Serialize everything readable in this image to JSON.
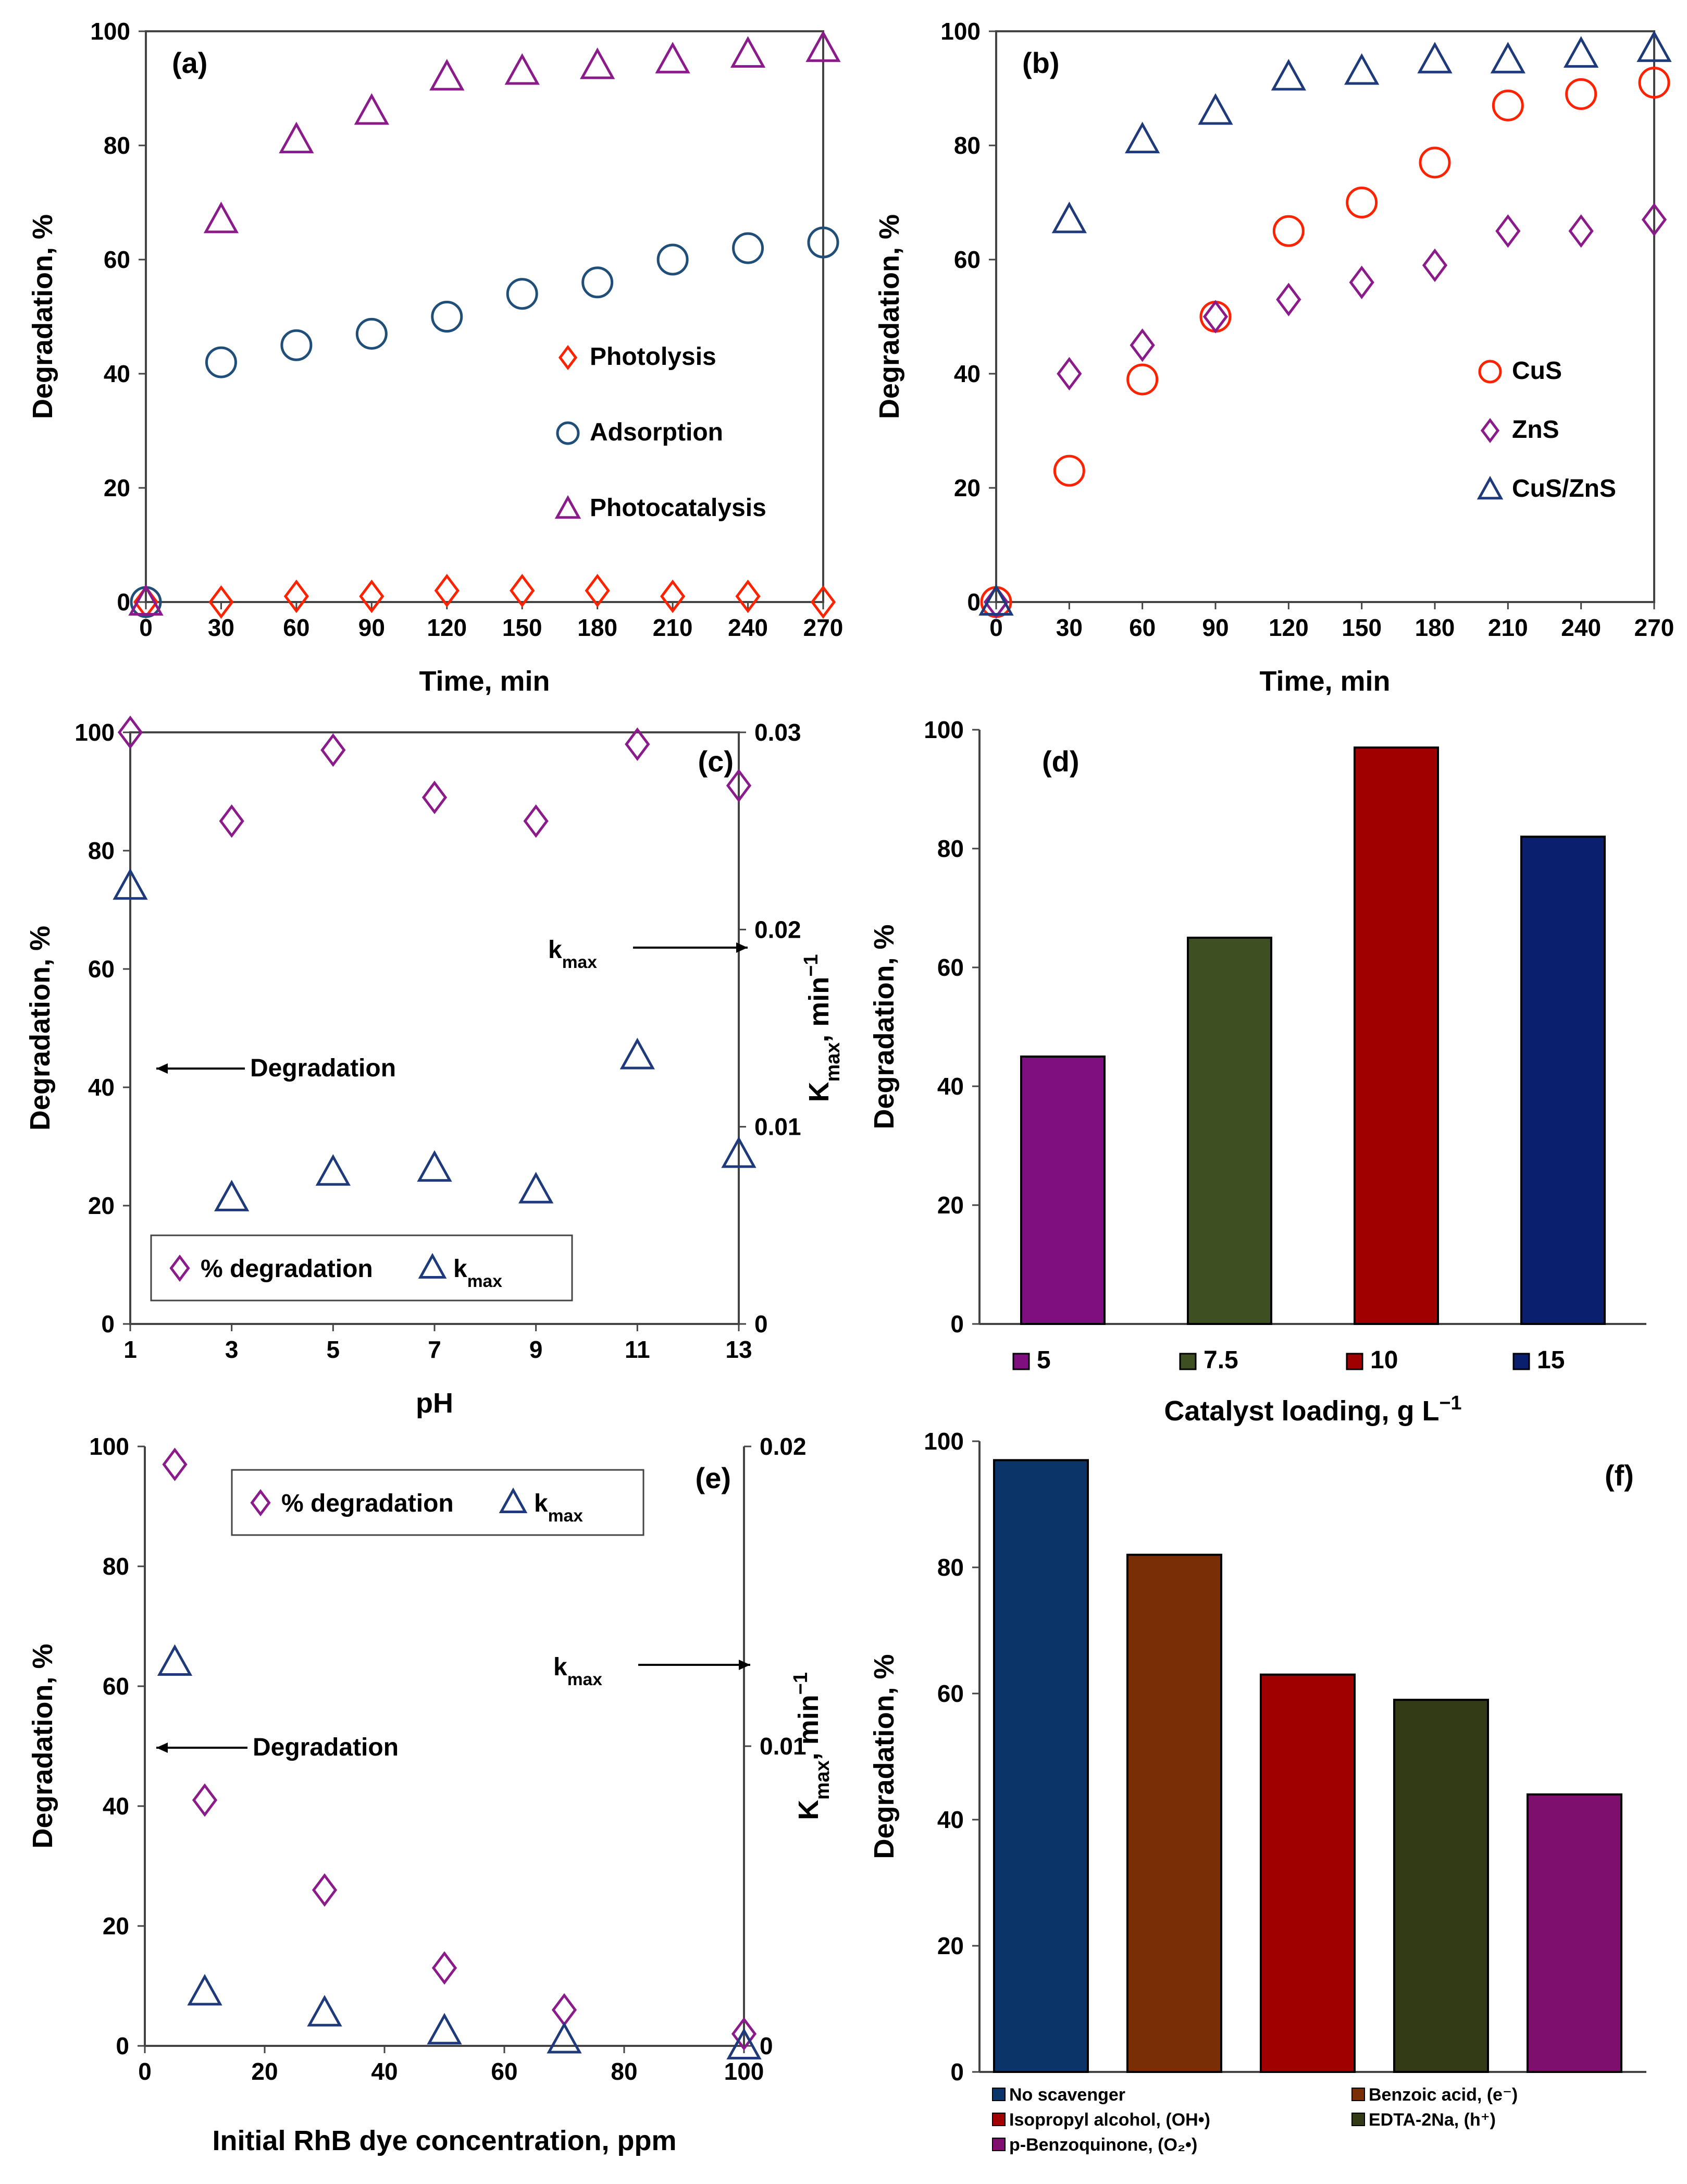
{
  "chart_data": [
    {
      "id": "a",
      "type": "scatter",
      "panel_label": "(a)",
      "xlabel": "Time, min",
      "ylabel": "Degradation, %",
      "xlim": [
        0,
        270
      ],
      "ylim": [
        0,
        100
      ],
      "xticks": [
        0,
        30,
        60,
        90,
        120,
        150,
        180,
        210,
        240,
        270
      ],
      "yticks": [
        0,
        20,
        40,
        60,
        80,
        100
      ],
      "legend_position": "right-middle",
      "series": [
        {
          "name": "Photolysis",
          "marker": "diamond",
          "color": "#ff2200",
          "x": [
            0,
            30,
            60,
            90,
            120,
            150,
            180,
            210,
            240,
            270
          ],
          "y": [
            0,
            0,
            1,
            1,
            2,
            2,
            2,
            1,
            1,
            0
          ]
        },
        {
          "name": "Adsorption",
          "marker": "circle",
          "color": "#1f4e79",
          "x": [
            0,
            30,
            60,
            90,
            120,
            150,
            180,
            210,
            240,
            270
          ],
          "y": [
            0,
            42,
            45,
            47,
            50,
            54,
            56,
            60,
            62,
            63
          ]
        },
        {
          "name": "Photocatalysis",
          "marker": "triangle",
          "color": "#8b1a8b",
          "x": [
            0,
            30,
            60,
            90,
            120,
            150,
            180,
            210,
            240,
            270
          ],
          "y": [
            0,
            67,
            81,
            86,
            92,
            93,
            94,
            95,
            96,
            97
          ]
        }
      ]
    },
    {
      "id": "b",
      "type": "scatter",
      "panel_label": "(b)",
      "xlabel": "Time, min",
      "ylabel": "Degradation, %",
      "xlim": [
        0,
        270
      ],
      "ylim": [
        0,
        100
      ],
      "xticks": [
        0,
        30,
        60,
        90,
        120,
        150,
        180,
        210,
        240,
        270
      ],
      "yticks": [
        0,
        20,
        40,
        60,
        80,
        100
      ],
      "legend_position": "right-middle",
      "series": [
        {
          "name": "CuS",
          "marker": "circle",
          "color": "#ff2200",
          "x": [
            0,
            30,
            60,
            90,
            120,
            150,
            180,
            210,
            240,
            270
          ],
          "y": [
            0,
            23,
            39,
            50,
            65,
            70,
            77,
            87,
            89,
            91
          ]
        },
        {
          "name": "ZnS",
          "marker": "diamond",
          "color": "#8b1a8b",
          "x": [
            0,
            30,
            60,
            90,
            120,
            150,
            180,
            210,
            240,
            270
          ],
          "y": [
            0,
            40,
            45,
            50,
            53,
            56,
            59,
            65,
            65,
            67
          ]
        },
        {
          "name": "CuS/ZnS",
          "marker": "triangle",
          "color": "#1f3a7a",
          "x": [
            0,
            30,
            60,
            90,
            120,
            150,
            180,
            210,
            240,
            270
          ],
          "y": [
            0,
            67,
            81,
            86,
            92,
            93,
            95,
            95,
            96,
            97
          ]
        }
      ]
    },
    {
      "id": "c",
      "type": "scatter",
      "panel_label": "(c)",
      "xlabel": "pH",
      "ylabel": "Degradation, %",
      "y2label": "K",
      "y2label_sub": "max",
      "y2label_suffix": ", min",
      "y2label_sup": "−1",
      "xlim": [
        1,
        13
      ],
      "ylim": [
        0,
        100
      ],
      "y2lim": [
        0,
        0.03
      ],
      "xticks": [
        1,
        3,
        5,
        7,
        9,
        11,
        13
      ],
      "yticks": [
        0,
        20,
        40,
        60,
        80,
        100
      ],
      "y2ticks": [
        0,
        0.01,
        0.02,
        0.03
      ],
      "y2tick_labels": [
        "0",
        "0.01",
        "0.02",
        "0.03"
      ],
      "legend_position": "bottom-left",
      "annotations": [
        {
          "text": "Degradation",
          "arrow": "left"
        },
        {
          "text": "k",
          "sub": "max",
          "arrow": "right"
        }
      ],
      "series": [
        {
          "name": "% degradation",
          "marker": "diamond",
          "color": "#8b1a8b",
          "axis": "left",
          "x": [
            1,
            3,
            5,
            7,
            9,
            11,
            13
          ],
          "y": [
            100,
            85,
            97,
            89,
            85,
            98,
            91
          ]
        },
        {
          "name": "k",
          "name_sub": "max",
          "marker": "triangle",
          "color": "#1f3a7a",
          "axis": "right",
          "x": [
            1,
            3,
            5,
            7,
            9,
            11,
            13
          ],
          "y": [
            0.0222,
            0.0064,
            0.0077,
            0.0079,
            0.0068,
            0.0136,
            0.0086
          ]
        }
      ]
    },
    {
      "id": "d",
      "type": "bar",
      "panel_label": "(d)",
      "xlabel": "Catalyst loading, g L",
      "xlabel_sup": "−1",
      "ylabel": "Degradation, %",
      "ylim": [
        0,
        100
      ],
      "yticks": [
        0,
        20,
        40,
        60,
        80,
        100
      ],
      "legend_position": "bottom",
      "categories": [
        "5",
        "7.5",
        "10",
        "15"
      ],
      "values": [
        45,
        65,
        97,
        82
      ],
      "colors": [
        "#7f0f7f",
        "#3e4f22",
        "#a00000",
        "#0a1f6e"
      ]
    },
    {
      "id": "e",
      "type": "scatter",
      "panel_label": "(e)",
      "xlabel": "Initial RhB dye concentration, ppm",
      "ylabel": "Degradation, %",
      "y2label": "K",
      "y2label_sub": "max",
      "y2label_suffix": ", min",
      "y2label_sup": "−1",
      "xlim": [
        0,
        100
      ],
      "ylim": [
        0,
        100
      ],
      "y2lim": [
        0,
        0.02
      ],
      "xticks": [
        0,
        20,
        40,
        60,
        80,
        100
      ],
      "yticks": [
        0,
        20,
        40,
        60,
        80,
        100
      ],
      "y2ticks": [
        0,
        0.01,
        0.02
      ],
      "y2tick_labels": [
        "0",
        "0.01",
        "0.02"
      ],
      "legend_position": "top",
      "annotations": [
        {
          "text": "Degradation",
          "arrow": "left"
        },
        {
          "text": "k",
          "sub": "max",
          "arrow": "right"
        }
      ],
      "series": [
        {
          "name": "% degradation",
          "marker": "diamond",
          "color": "#8b1a8b",
          "axis": "left",
          "x": [
            5,
            10,
            30,
            50,
            70,
            100
          ],
          "y": [
            97,
            41,
            26,
            13,
            6,
            2
          ]
        },
        {
          "name": "k",
          "name_sub": "max",
          "marker": "triangle",
          "color": "#1f3a7a",
          "axis": "right",
          "x": [
            5,
            10,
            30,
            50,
            70,
            100
          ],
          "y": [
            0.0128,
            0.0018,
            0.0011,
            0.0005,
            0.0002,
            0.0
          ]
        }
      ]
    },
    {
      "id": "f",
      "type": "bar",
      "panel_label": "(f)",
      "xlabel": "",
      "ylabel": "Degradation, %",
      "ylim": [
        0,
        100
      ],
      "yticks": [
        0,
        20,
        40,
        60,
        80,
        100
      ],
      "legend_position": "bottom",
      "categories": [
        "No scavenger",
        "Benzoic acid, (e⁻)",
        "Isopropyl alcohol, (OH•)",
        "EDTA-2Na, (h⁺)",
        "p-Benzoquinone, (O₂•)"
      ],
      "values": [
        97,
        82,
        63,
        59,
        44
      ],
      "colors": [
        "#0b3468",
        "#7a2e06",
        "#a00000",
        "#333a16",
        "#7f0f6f"
      ]
    }
  ]
}
